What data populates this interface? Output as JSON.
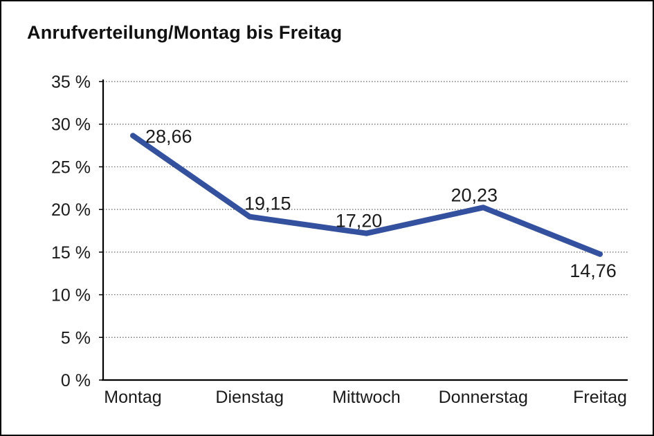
{
  "title": "Anrufverteilung/Montag bis Freitag",
  "chart_data": {
    "type": "line",
    "title": "Anrufverteilung/Montag bis Freitag",
    "categories": [
      "Montag",
      "Dienstag",
      "Mittwoch",
      "Donnerstag",
      "Freitag"
    ],
    "series": [
      {
        "name": "Anrufverteilung",
        "values": [
          28.66,
          19.15,
          17.2,
          20.23,
          14.76
        ]
      }
    ],
    "point_labels": [
      "28,66",
      "19,15",
      "17,20",
      "20,23",
      "14,76"
    ],
    "yticks": [
      0,
      5,
      10,
      15,
      20,
      25,
      30,
      35
    ],
    "ytick_labels": [
      "0 %",
      "5 %",
      "10 %",
      "15 %",
      "20 %",
      "25 %",
      "30 %",
      "35 %"
    ],
    "ylim": [
      0,
      35
    ],
    "xlabel": "",
    "ylabel": "",
    "grid": "horizontal-dotted",
    "legend": "none",
    "line_color": "#33519E",
    "text_color": "#1a1a1a"
  }
}
